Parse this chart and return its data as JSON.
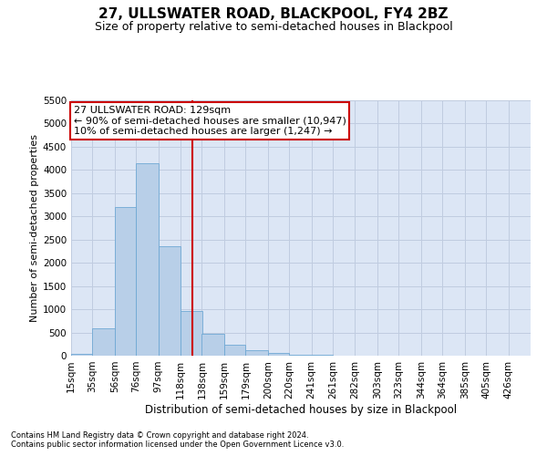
{
  "title_line1": "27, ULLSWATER ROAD, BLACKPOOL, FY4 2BZ",
  "title_line2": "Size of property relative to semi-detached houses in Blackpool",
  "xlabel": "Distribution of semi-detached houses by size in Blackpool",
  "ylabel": "Number of semi-detached properties",
  "footnote1": "Contains HM Land Registry data © Crown copyright and database right 2024.",
  "footnote2": "Contains public sector information licensed under the Open Government Licence v3.0.",
  "annotation_line1": "27 ULLSWATER ROAD: 129sqm",
  "annotation_line2": "← 90% of semi-detached houses are smaller (10,947)",
  "annotation_line3": "10% of semi-detached houses are larger (1,247) →",
  "bar_color": "#b8cfe8",
  "bar_edge_color": "#6fa8d4",
  "vline_color": "#cc0000",
  "vline_x": 129,
  "categories": [
    "15sqm",
    "35sqm",
    "56sqm",
    "76sqm",
    "97sqm",
    "118sqm",
    "138sqm",
    "159sqm",
    "179sqm",
    "200sqm",
    "220sqm",
    "241sqm",
    "261sqm",
    "282sqm",
    "303sqm",
    "323sqm",
    "344sqm",
    "364sqm",
    "385sqm",
    "405sqm",
    "426sqm"
  ],
  "bin_edges": [
    15,
    35,
    56,
    76,
    97,
    118,
    138,
    159,
    179,
    200,
    220,
    241,
    261,
    282,
    303,
    323,
    344,
    364,
    385,
    405,
    426
  ],
  "values": [
    30,
    580,
    3200,
    4150,
    2350,
    970,
    480,
    230,
    115,
    55,
    20,
    10,
    5,
    0,
    0,
    0,
    0,
    0,
    0,
    0
  ],
  "ylim": [
    0,
    5500
  ],
  "yticks": [
    0,
    500,
    1000,
    1500,
    2000,
    2500,
    3000,
    3500,
    4000,
    4500,
    5000,
    5500
  ],
  "axes_bg_color": "#dce6f5",
  "grid_color": "#c0cce0",
  "title_fontsize": 11,
  "subtitle_fontsize": 9,
  "axis_label_fontsize": 8,
  "tick_fontsize": 7.5,
  "footnote_fontsize": 6,
  "annotation_fontsize": 8
}
